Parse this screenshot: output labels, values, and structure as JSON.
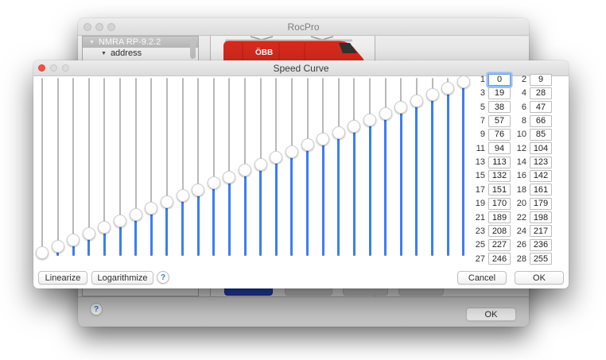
{
  "app_window": {
    "title": "RocPro",
    "sidebar_tree": [
      {
        "label": "NMRA RP-9.2.2",
        "selected": true,
        "level": 0
      },
      {
        "label": "address",
        "selected": false,
        "level": 1
      }
    ],
    "locomotive_text": "ÖBB",
    "bottom_bar": {
      "help_label": "?",
      "ok_label": "OK"
    }
  },
  "dialog": {
    "title": "Speed Curve",
    "footer": {
      "linearize_label": "Linearize",
      "logarithmize_label": "Logarithmize",
      "help_label": "?",
      "cancel_label": "Cancel",
      "ok_label": "OK"
    },
    "speed_table": {
      "indices": [
        1,
        2,
        3,
        4,
        5,
        6,
        7,
        8,
        9,
        10,
        11,
        12,
        13,
        14,
        15,
        16,
        17,
        18,
        19,
        20,
        21,
        22,
        23,
        24,
        25,
        26,
        27,
        28
      ],
      "values": [
        0,
        9,
        19,
        28,
        38,
        47,
        57,
        66,
        76,
        85,
        94,
        104,
        113,
        123,
        132,
        142,
        151,
        161,
        170,
        179,
        189,
        198,
        208,
        217,
        227,
        236,
        246,
        255
      ],
      "focused_index": 1,
      "value_min": 0,
      "value_max": 255
    }
  },
  "colors": {
    "slider_fill": "#3d7df4",
    "slider_track": "#b9b9b9",
    "selected_segment": "#2744b6",
    "loco_red": "#d62a1e",
    "loco_red_dark": "#9c1d14"
  }
}
